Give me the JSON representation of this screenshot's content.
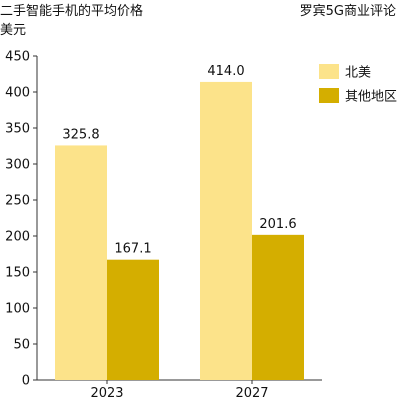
{
  "chart_data": {
    "type": "bar",
    "title": "二手智能手机的平均价格",
    "unit_label": "美元",
    "source": "罗宾5G商业评论",
    "categories": [
      "2023",
      "2027"
    ],
    "series": [
      {
        "name": "北美",
        "values": [
          325.8,
          414.0
        ],
        "labels": [
          "325.8",
          "414.0"
        ],
        "color": "#fce38a"
      },
      {
        "name": "其他地区",
        "values": [
          167.1,
          201.6
        ],
        "labels": [
          "167.1",
          "201.6"
        ],
        "color": "#d4ae00"
      }
    ],
    "ylim": [
      0,
      450
    ],
    "yticks": [
      "0",
      "50",
      "100",
      "150",
      "200",
      "250",
      "300",
      "350",
      "400",
      "450"
    ],
    "grid": false,
    "legend_position": "top-right"
  }
}
